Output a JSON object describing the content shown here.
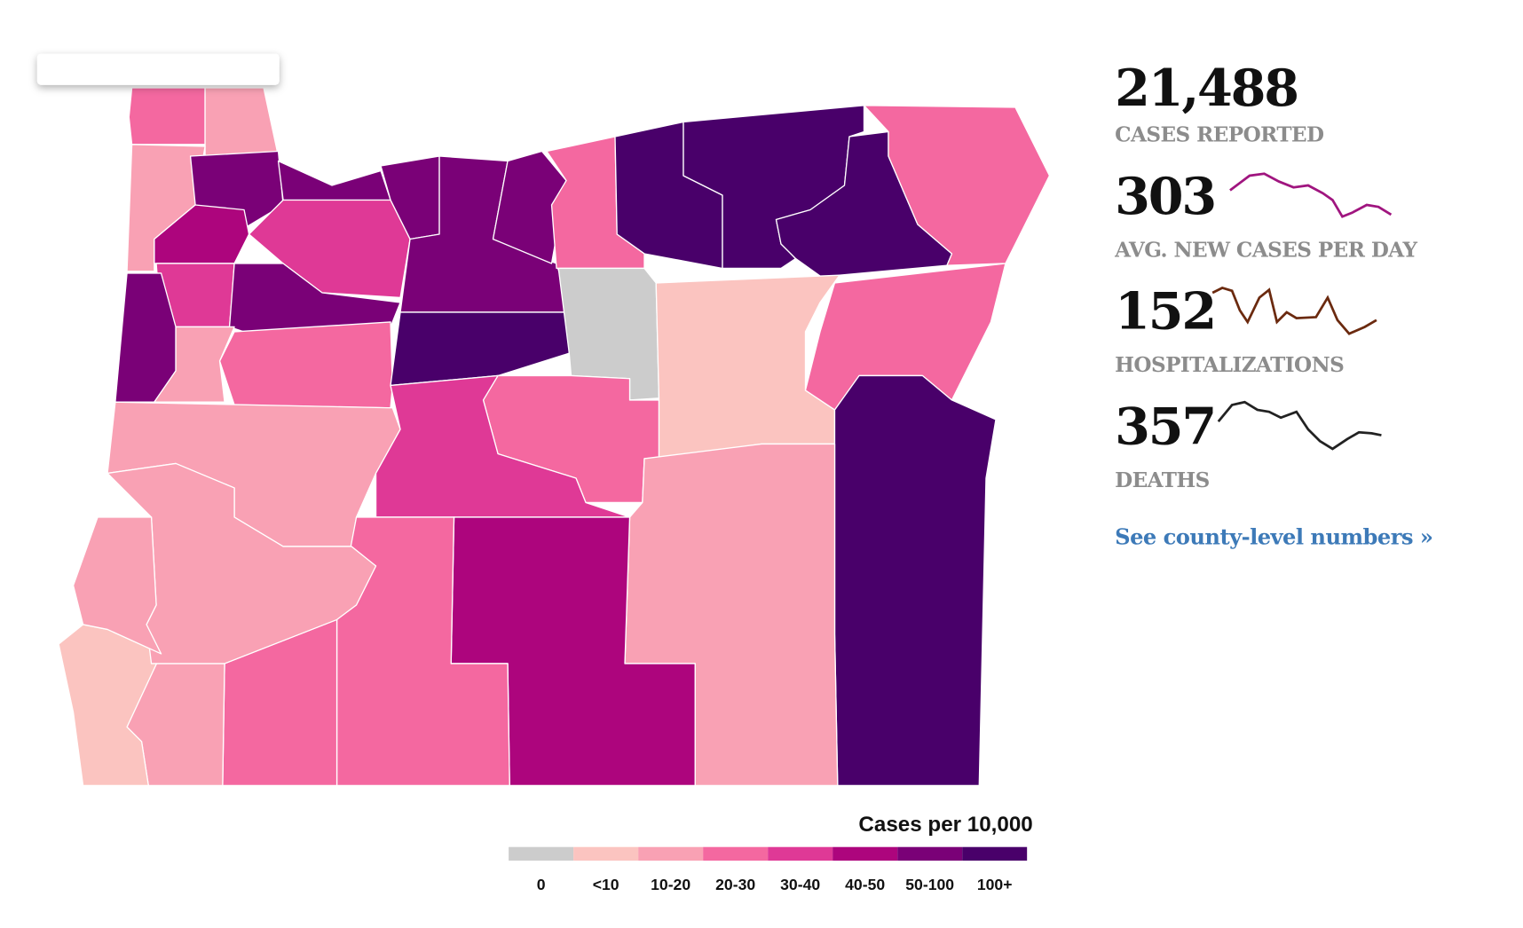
{
  "stats": [
    {
      "value": "21,488",
      "label": "CASES REPORTED"
    },
    {
      "value": "303",
      "label": "AVG. NEW CASES PER DAY"
    },
    {
      "value": "152",
      "label": "HOSPITALIZATIONS"
    },
    {
      "value": "357",
      "label": "DEATHS"
    }
  ],
  "link": "See county-level numbers »",
  "legend": {
    "title": "Cases per 10,000",
    "items": [
      {
        "label": "0",
        "color": "#cccccc"
      },
      {
        "label": "<10",
        "color": "#fbc4c0"
      },
      {
        "label": "10-20",
        "color": "#f9a1b4"
      },
      {
        "label": "20-30",
        "color": "#f468a0"
      },
      {
        "label": "30-40",
        "color": "#df3996"
      },
      {
        "label": "40-50",
        "color": "#ad057d"
      },
      {
        "label": "50-100",
        "color": "#7a0177"
      },
      {
        "label": "100+",
        "color": "#49006a"
      }
    ]
  }
}
